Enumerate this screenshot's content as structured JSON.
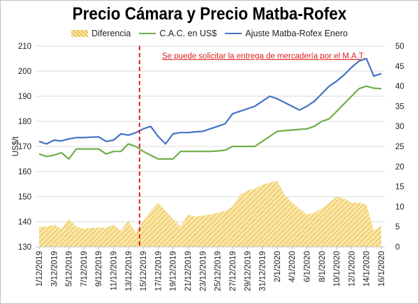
{
  "chart_data": {
    "type": "line",
    "title": "Precio Cámara y Precio Matba-Rofex",
    "ylabel": "US$/t",
    "ylim": [
      130,
      210
    ],
    "y2lim": [
      0,
      50
    ],
    "yticks": [
      130,
      140,
      150,
      160,
      170,
      180,
      190,
      200,
      210
    ],
    "y2ticks": [
      0,
      5,
      10,
      15,
      20,
      25,
      30,
      35,
      40,
      45,
      50
    ],
    "legend_position": "top",
    "annotation": "Se puede solicitar la entrega de mercadería por el M.A.T.",
    "vline_after_date": "14/12/2019",
    "x": [
      "1/12/2019",
      "2/12/2019",
      "3/12/2019",
      "4/12/2019",
      "5/12/2019",
      "6/12/2019",
      "7/12/2019",
      "8/12/2019",
      "9/12/2019",
      "10/12/2019",
      "11/12/2019",
      "12/12/2019",
      "13/12/2019",
      "14/12/2019",
      "15/12/2019",
      "16/12/2019",
      "17/12/2019",
      "18/12/2019",
      "19/12/2019",
      "20/12/2019",
      "21/12/2019",
      "22/12/2019",
      "23/12/2019",
      "24/12/2019",
      "25/12/2019",
      "26/12/2019",
      "27/12/2019",
      "28/12/2019",
      "29/12/2019",
      "30/12/2019",
      "31/12/2019",
      "1/1/2020",
      "2/1/2020",
      "3/1/2020",
      "4/1/2020",
      "5/1/2020",
      "6/1/2020",
      "7/1/2020",
      "8/1/2020",
      "9/1/2020",
      "10/1/2020",
      "11/1/2020",
      "12/1/2020",
      "13/1/2020",
      "14/1/2020",
      "15/1/2020",
      "16/1/2020"
    ],
    "xtick_labels": [
      "1/12/2019",
      "3/12/2019",
      "5/12/2019",
      "7/12/2019",
      "9/12/2019",
      "11/12/2019",
      "13/12/2019",
      "15/12/2019",
      "17/12/2019",
      "19/12/2019",
      "21/12/2019",
      "23/12/2019",
      "25/12/2019",
      "27/12/2019",
      "29/12/2019",
      "31/12/2019",
      "2/1/2020",
      "4/1/2020",
      "6/1/2020",
      "8/1/2020",
      "10/1/2020",
      "12/1/2020",
      "14/1/2020",
      "16/1/2020"
    ],
    "series": [
      {
        "name": "Diferencia",
        "axis": "right",
        "kind": "area",
        "color": "#e8c35a",
        "values": [
          5,
          5,
          5.5,
          4.5,
          7,
          5,
          4.5,
          4.7,
          4.8,
          4.7,
          5.5,
          4,
          6.5,
          3.5,
          6.5,
          9,
          11,
          9,
          7,
          5,
          8,
          7.5,
          7.8,
          8,
          8.5,
          9,
          10,
          13,
          14,
          14.5,
          15.5,
          16,
          16.5,
          13,
          11,
          9.5,
          8,
          8.5,
          9.5,
          11,
          12.5,
          12,
          11,
          11,
          10.5,
          4,
          5.2
        ]
      },
      {
        "name": "C.A.C. en US$",
        "axis": "left",
        "kind": "line",
        "color": "#70ad47",
        "values": [
          167,
          166,
          166.5,
          167.5,
          165,
          169,
          169,
          169,
          169,
          167,
          168,
          168,
          171,
          170,
          168,
          166.5,
          165,
          165,
          165,
          168,
          168,
          168,
          168,
          168,
          168.2,
          168.5,
          170,
          170,
          170,
          170,
          172,
          174,
          176,
          176.3,
          176.5,
          176.8,
          177,
          178,
          180,
          181,
          184,
          187,
          190,
          193,
          194,
          193.2,
          193
        ]
      },
      {
        "name": "Ajuste Matba-Rofex Enero",
        "axis": "left",
        "kind": "line",
        "color": "#4472c4",
        "values": [
          172,
          171,
          172.5,
          172.2,
          173,
          173.5,
          173.5,
          173.7,
          173.8,
          172,
          172.5,
          175,
          174.5,
          175.5,
          177,
          178,
          174,
          171,
          175,
          175.5,
          175.5,
          175.8,
          176,
          177,
          178,
          179,
          183,
          184,
          185,
          186,
          188,
          190,
          189,
          187.5,
          186,
          184.5,
          186,
          188,
          191,
          194,
          196,
          198.5,
          201.5,
          204,
          205,
          198,
          199
        ]
      }
    ]
  }
}
